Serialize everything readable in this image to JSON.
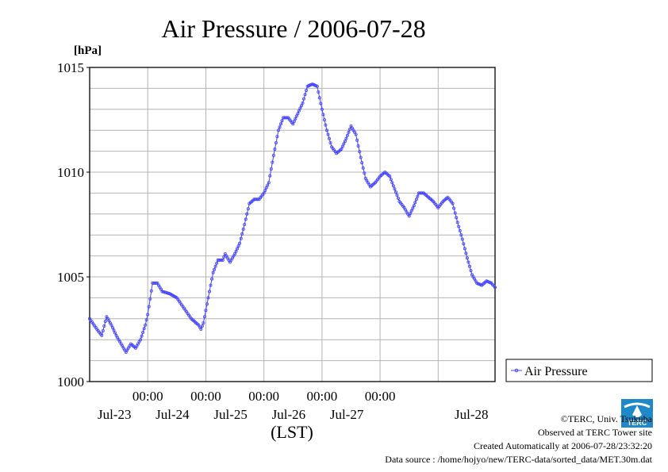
{
  "chart_data": {
    "type": "line",
    "title": "Air Pressure / 2006-07-28",
    "ylabel": "[hPa]",
    "xlabel": "(LST)",
    "ylim": [
      1000,
      1015
    ],
    "y_ticks": [
      "1000",
      "1005",
      "1010",
      "1015"
    ],
    "xlim": [
      "2006-07-22T00:00",
      "2006-07-28T23:30"
    ],
    "x_ticks": [
      {
        "time": "2006-07-23T00:00",
        "label": "00:00",
        "date_label": "Jul-23"
      },
      {
        "time": "2006-07-24T00:00",
        "label": "00:00",
        "date_label": "Jul-24"
      },
      {
        "time": "2006-07-25T00:00",
        "label": "00:00",
        "date_label": "Jul-25"
      },
      {
        "time": "2006-07-26T00:00",
        "label": "00:00",
        "date_label": "Jul-26"
      },
      {
        "time": "2006-07-27T00:00",
        "label": "00:00",
        "date_label": "Jul-27"
      },
      {
        "time": "2006-07-28T00:00",
        "label": ""
      }
    ],
    "grid": true,
    "legend_position": "right",
    "series": [
      {
        "name": "Air Pressure",
        "color": "#4444ff",
        "points": [
          [
            "2006-07-22T00:00",
            1003.0
          ],
          [
            "2006-07-22T03:00",
            1002.5
          ],
          [
            "2006-07-22T05:00",
            1002.2
          ],
          [
            "2006-07-22T07:00",
            1003.1
          ],
          [
            "2006-07-22T09:00",
            1002.7
          ],
          [
            "2006-07-22T11:00",
            1002.2
          ],
          [
            "2006-07-22T13:00",
            1001.8
          ],
          [
            "2006-07-22T15:00",
            1001.4
          ],
          [
            "2006-07-22T17:00",
            1001.8
          ],
          [
            "2006-07-22T19:00",
            1001.6
          ],
          [
            "2006-07-22T21:00",
            1002.0
          ],
          [
            "2006-07-22T23:00",
            1002.7
          ],
          [
            "2006-07-23T00:00",
            1003.2
          ],
          [
            "2006-07-23T02:00",
            1004.7
          ],
          [
            "2006-07-23T04:00",
            1004.7
          ],
          [
            "2006-07-23T06:00",
            1004.3
          ],
          [
            "2006-07-23T09:00",
            1004.2
          ],
          [
            "2006-07-23T12:00",
            1004.0
          ],
          [
            "2006-07-23T15:00",
            1003.5
          ],
          [
            "2006-07-23T18:00",
            1003.0
          ],
          [
            "2006-07-23T21:00",
            1002.7
          ],
          [
            "2006-07-23T22:00",
            1002.5
          ],
          [
            "2006-07-23T23:00",
            1002.8
          ],
          [
            "2006-07-24T01:00",
            1004.0
          ],
          [
            "2006-07-24T03:00",
            1005.2
          ],
          [
            "2006-07-24T05:00",
            1005.8
          ],
          [
            "2006-07-24T07:00",
            1005.8
          ],
          [
            "2006-07-24T08:00",
            1006.1
          ],
          [
            "2006-07-24T10:00",
            1005.7
          ],
          [
            "2006-07-24T12:00",
            1006.1
          ],
          [
            "2006-07-24T14:00",
            1006.6
          ],
          [
            "2006-07-24T16:00",
            1007.5
          ],
          [
            "2006-07-24T18:00",
            1008.5
          ],
          [
            "2006-07-24T20:00",
            1008.7
          ],
          [
            "2006-07-24T22:00",
            1008.7
          ],
          [
            "2006-07-25T00:00",
            1009.0
          ],
          [
            "2006-07-25T02:00",
            1009.5
          ],
          [
            "2006-07-25T04:00",
            1010.8
          ],
          [
            "2006-07-25T06:00",
            1012.0
          ],
          [
            "2006-07-25T08:00",
            1012.6
          ],
          [
            "2006-07-25T10:00",
            1012.6
          ],
          [
            "2006-07-25T12:00",
            1012.3
          ],
          [
            "2006-07-25T14:00",
            1012.8
          ],
          [
            "2006-07-25T16:00",
            1013.3
          ],
          [
            "2006-07-25T18:00",
            1014.1
          ],
          [
            "2006-07-25T20:00",
            1014.2
          ],
          [
            "2006-07-25T22:00",
            1014.1
          ],
          [
            "2006-07-26T00:00",
            1013.0
          ],
          [
            "2006-07-26T02:00",
            1012.0
          ],
          [
            "2006-07-26T04:00",
            1011.2
          ],
          [
            "2006-07-26T06:00",
            1010.9
          ],
          [
            "2006-07-26T08:00",
            1011.1
          ],
          [
            "2006-07-26T10:00",
            1011.6
          ],
          [
            "2006-07-26T12:00",
            1012.2
          ],
          [
            "2006-07-26T14:00",
            1011.8
          ],
          [
            "2006-07-26T16:00",
            1010.7
          ],
          [
            "2006-07-26T18:00",
            1009.7
          ],
          [
            "2006-07-26T20:00",
            1009.3
          ],
          [
            "2006-07-26T22:00",
            1009.5
          ],
          [
            "2006-07-27T00:00",
            1009.8
          ],
          [
            "2006-07-27T02:00",
            1010.0
          ],
          [
            "2006-07-27T04:00",
            1009.8
          ],
          [
            "2006-07-27T06:00",
            1009.2
          ],
          [
            "2006-07-27T08:00",
            1008.6
          ],
          [
            "2006-07-27T10:00",
            1008.3
          ],
          [
            "2006-07-27T12:00",
            1007.9
          ],
          [
            "2006-07-27T14:00",
            1008.4
          ],
          [
            "2006-07-27T16:00",
            1009.0
          ],
          [
            "2006-07-27T18:00",
            1009.0
          ],
          [
            "2006-07-27T20:00",
            1008.8
          ],
          [
            "2006-07-27T22:00",
            1008.6
          ],
          [
            "2006-07-28T00:00",
            1008.3
          ],
          [
            "2006-07-28T02:00",
            1008.6
          ],
          [
            "2006-07-28T04:00",
            1008.8
          ],
          [
            "2006-07-28T06:00",
            1008.5
          ],
          [
            "2006-07-28T08:00",
            1007.6
          ],
          [
            "2006-07-28T10:00",
            1006.8
          ],
          [
            "2006-07-28T12:00",
            1005.9
          ],
          [
            "2006-07-28T14:00",
            1005.1
          ],
          [
            "2006-07-28T16:00",
            1004.7
          ],
          [
            "2006-07-28T18:00",
            1004.6
          ],
          [
            "2006-07-28T20:00",
            1004.8
          ],
          [
            "2006-07-28T22:00",
            1004.7
          ],
          [
            "2006-07-28T23:30",
            1004.5
          ]
        ]
      }
    ]
  },
  "credits": {
    "copyright": "©TERC, Univ. Tsukuba",
    "site": "Observed at TERC Tower site",
    "created": "Created Automatically at 2006-07-28/23:32:20",
    "source": "Data source : /home/hojyo/new/TERC-data/sorted_data/MET.30m.dat"
  },
  "logo": {
    "icon": "terc-logo-icon",
    "text": "TERC",
    "color": "#1e88c8"
  }
}
